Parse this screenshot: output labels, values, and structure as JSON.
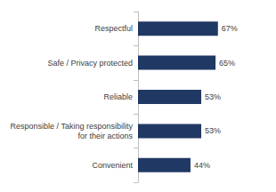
{
  "chart_data": {
    "type": "bar",
    "orientation": "horizontal",
    "categories": [
      "Respectful",
      "Safe / Privacy protected",
      "Reliable",
      "Responsible / Taking responsibility for their actions",
      "Convenient"
    ],
    "values": [
      67,
      65,
      53,
      53,
      44
    ],
    "value_labels": [
      "67%",
      "65%",
      "53%",
      "53%",
      "44%"
    ],
    "color": "#203864",
    "xlim": [
      0,
      100
    ],
    "data_labels": true,
    "grid": false,
    "tick_labels": "y"
  }
}
